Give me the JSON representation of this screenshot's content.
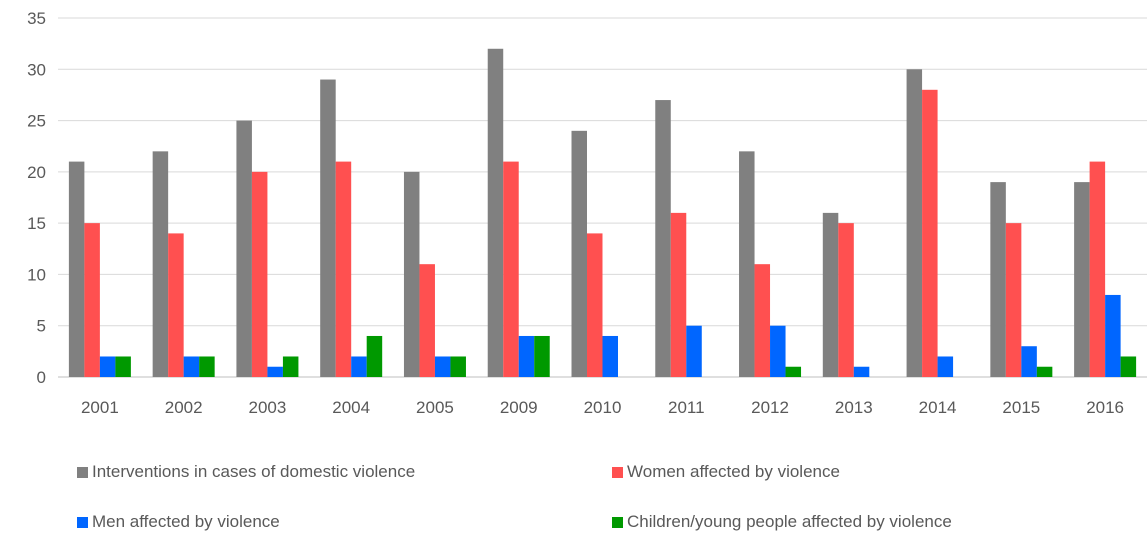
{
  "chart_data": {
    "type": "bar",
    "title": "",
    "xlabel": "",
    "ylabel": "",
    "ylim": [
      0,
      35
    ],
    "yticks": [
      0,
      5,
      10,
      15,
      20,
      25,
      30,
      35
    ],
    "grid": true,
    "legend_position": "bottom",
    "categories": [
      "2001",
      "2002",
      "2003",
      "2004",
      "2005",
      "2009",
      "2010",
      "2011",
      "2012",
      "2013",
      "2014",
      "2015",
      "2016"
    ],
    "series": [
      {
        "name": "Interventions in cases of domestic violence",
        "color": "#808080",
        "values": [
          21,
          22,
          25,
          29,
          20,
          32,
          24,
          27,
          22,
          16,
          30,
          19,
          19
        ]
      },
      {
        "name": "Women affected by violence",
        "color": "#ff5050",
        "values": [
          15,
          14,
          20,
          21,
          11,
          21,
          14,
          16,
          11,
          15,
          28,
          15,
          21
        ]
      },
      {
        "name": "Men affected by violence",
        "color": "#0066ff",
        "values": [
          2,
          2,
          1,
          2,
          2,
          4,
          4,
          5,
          5,
          1,
          2,
          3,
          8
        ]
      },
      {
        "name": "Children/young people affected by violence",
        "color": "#009900",
        "values": [
          2,
          2,
          2,
          4,
          2,
          4,
          0,
          0,
          1,
          0,
          0,
          1,
          2
        ]
      }
    ]
  }
}
